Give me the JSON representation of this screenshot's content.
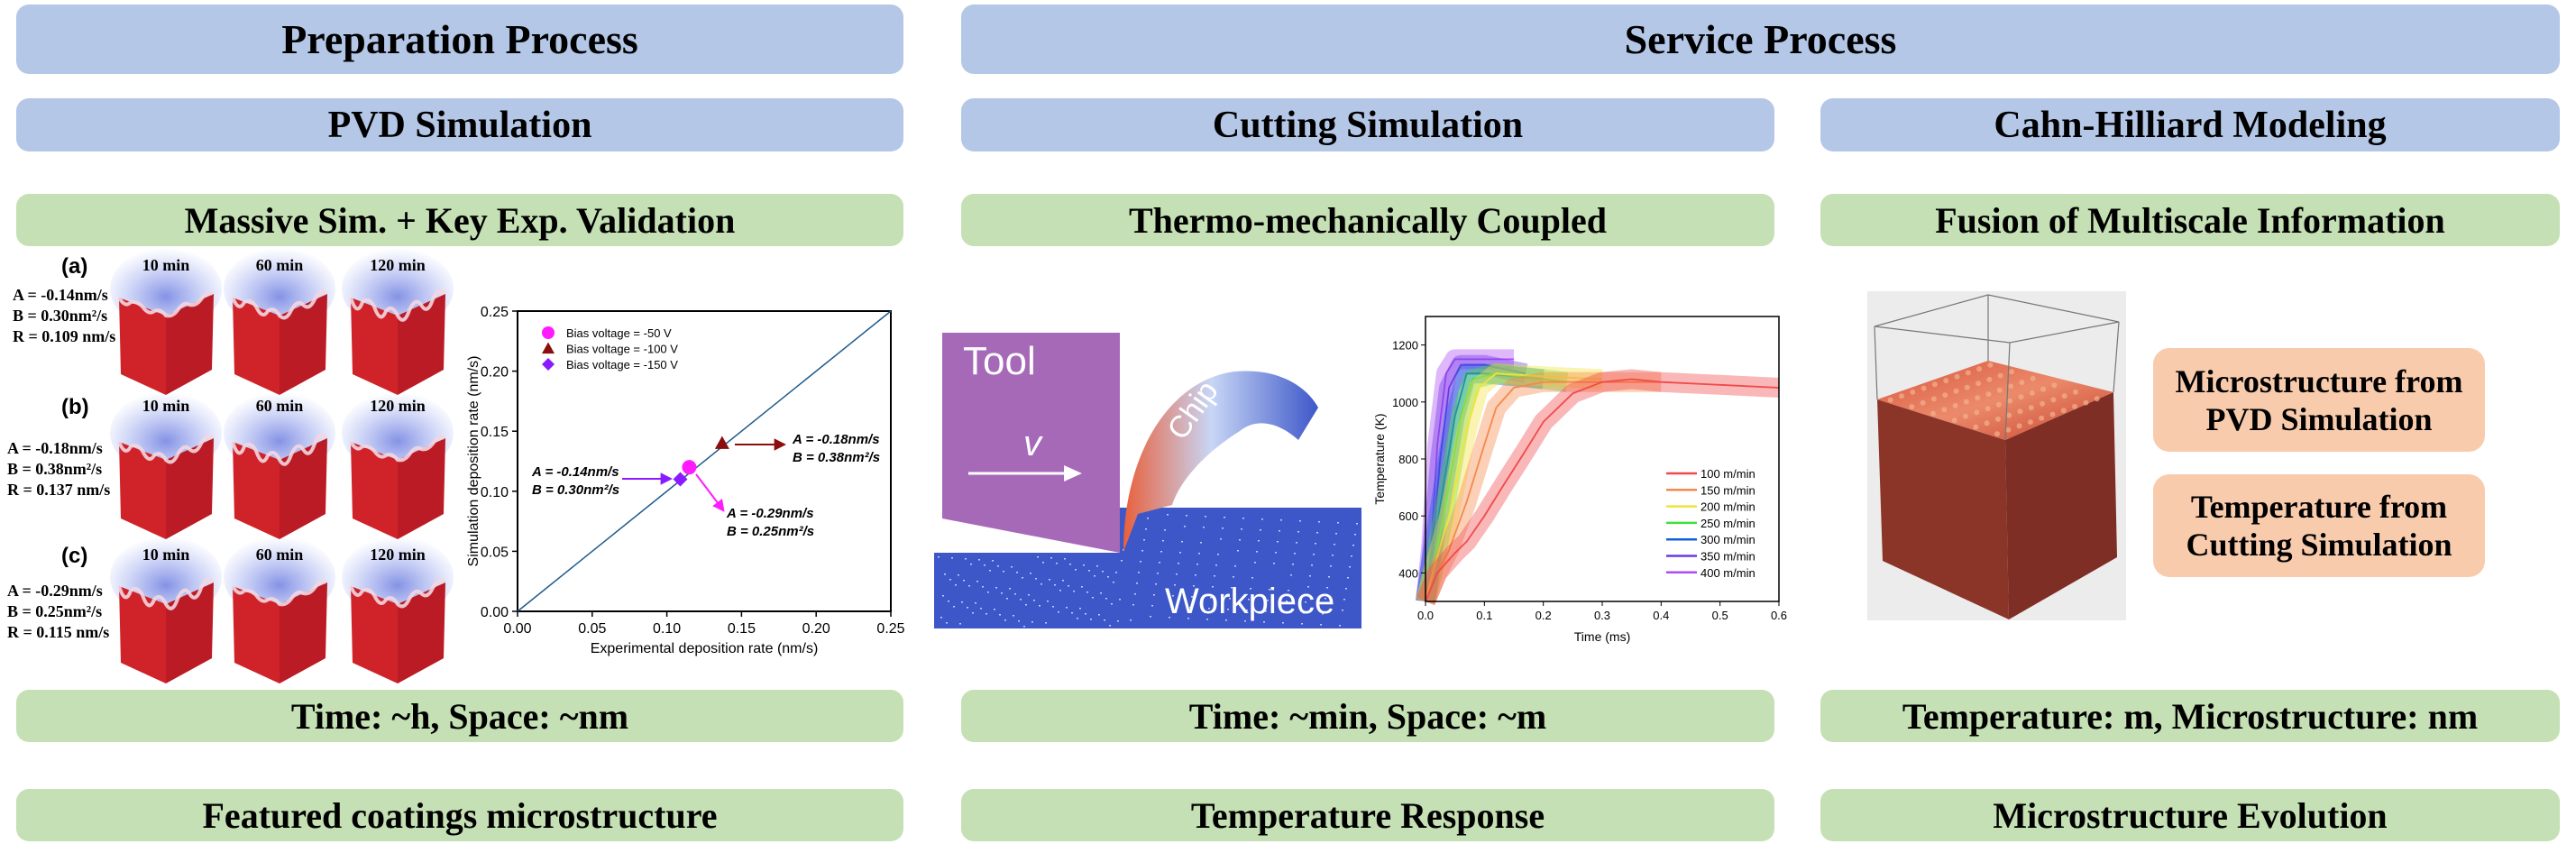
{
  "headers": {
    "preparation": "Preparation Process",
    "service": "Service Process"
  },
  "subheaders": {
    "pvd": "PVD Simulation",
    "cutting": "Cutting Simulation",
    "cahn": "Cahn-Hilliard Modeling"
  },
  "features": {
    "pvd": "Massive Sim. + Key Exp. Validation",
    "cutting": "Thermo-mechanically Coupled",
    "cahn": "Fusion of Multiscale Information"
  },
  "scales": {
    "pvd": "Time: ~h, Space: ~nm",
    "cutting": "Time: ~min, Space: ~m",
    "cahn": "Temperature: m, Microstructure: nm"
  },
  "outcomes": {
    "pvd": "Featured coatings microstructure",
    "cutting": "Temperature Response",
    "cahn": "Microstructure Evolution"
  },
  "morphology": {
    "times": [
      "10 min",
      "60 min",
      "120 min"
    ],
    "rows": [
      {
        "label": "(a)",
        "A": "A = -0.14nm/s",
        "B": "B = 0.30nm²/s",
        "R": "R  = 0.109 nm/s"
      },
      {
        "label": "(b)",
        "A": "A = -0.18nm/s",
        "B": "B = 0.38nm²/s",
        "R": "R  = 0.137 nm/s"
      },
      {
        "label": "(c)",
        "A": "A = -0.29nm/s",
        "B": "B = 0.25nm²/s",
        "R": "R  = 0.115 nm/s"
      }
    ]
  },
  "cutting_image": {
    "tool": "Tool",
    "velocity": "v",
    "chip": "Chip",
    "workpiece": "Workpiece",
    "colors": {
      "tool": "#a569b8",
      "workpiece": "#3d57c9",
      "hot": "#e8603c"
    }
  },
  "cahn_panel": {
    "info_1": "Microstructure from PVD Simulation",
    "info_2": "Temperature from Cutting Simulation",
    "colors": {
      "cube": "#8b3428",
      "top": "#d8553f"
    }
  },
  "chart_data": [
    {
      "type": "scatter",
      "xlabel": "Experimental deposition rate (nm/s)",
      "ylabel": "Simulation deposition rate (nm/s)",
      "xlim": [
        0,
        0.25
      ],
      "ylim": [
        0,
        0.25
      ],
      "xticks": [
        "0.00",
        "0.05",
        "0.10",
        "0.15",
        "0.20",
        "0.25"
      ],
      "yticks": [
        "0.00",
        "0.05",
        "0.10",
        "0.15",
        "0.20",
        "0.25"
      ],
      "reference_line": {
        "from": [
          0,
          0
        ],
        "to": [
          0.25,
          0.25
        ],
        "color": "#1f5a8c"
      },
      "legend_position": "top-left",
      "series": [
        {
          "name": "Bias voltage = -50 V",
          "marker": "circle",
          "color": "#ff1aff",
          "x": 0.115,
          "y": 0.12,
          "annotation": [
            "A = -0.29nm/s",
            "B = 0.25nm²/s"
          ]
        },
        {
          "name": "Bias voltage = -100 V",
          "marker": "triangle",
          "color": "#8b0d0d",
          "x": 0.137,
          "y": 0.14,
          "annotation": [
            "A = -0.18nm/s",
            "B = 0.38nm²/s"
          ]
        },
        {
          "name": "Bias voltage = -150 V",
          "marker": "diamond",
          "color": "#8a1aff",
          "x": 0.109,
          "y": 0.11,
          "annotation": [
            "A = -0.14nm/s",
            "B = 0.30nm²/s"
          ]
        }
      ]
    },
    {
      "type": "line",
      "xlabel": "Time (ms)",
      "ylabel": "Temperature (K)",
      "xlim": [
        0,
        0.6
      ],
      "ylim": [
        300,
        1300
      ],
      "xticks": [
        "0.0",
        "0.1",
        "0.2",
        "0.3",
        "0.4",
        "0.5",
        "0.6"
      ],
      "yticks": [
        "400",
        "600",
        "800",
        "1000",
        "1200"
      ],
      "legend_position": "bottom-right",
      "series": [
        {
          "name": "100 m/min",
          "color": "#f04a4a",
          "points": [
            [
              0,
              300
            ],
            [
              0.02,
              400
            ],
            [
              0.05,
              470
            ],
            [
              0.07,
              510
            ],
            [
              0.1,
              600
            ],
            [
              0.13,
              700
            ],
            [
              0.17,
              830
            ],
            [
              0.2,
              930
            ],
            [
              0.25,
              1030
            ],
            [
              0.3,
              1070
            ],
            [
              0.35,
              1080
            ],
            [
              0.4,
              1070
            ],
            [
              0.5,
              1060
            ],
            [
              0.6,
              1050
            ]
          ]
        },
        {
          "name": "150 m/min",
          "color": "#f5894a",
          "points": [
            [
              0,
              300
            ],
            [
              0.02,
              400
            ],
            [
              0.04,
              480
            ],
            [
              0.07,
              650
            ],
            [
              0.1,
              850
            ],
            [
              0.12,
              980
            ],
            [
              0.15,
              1050
            ],
            [
              0.2,
              1070
            ],
            [
              0.3,
              1070
            ],
            [
              0.4,
              1070
            ]
          ]
        },
        {
          "name": "200 m/min",
          "color": "#f2e23c",
          "points": [
            [
              0,
              300
            ],
            [
              0.015,
              420
            ],
            [
              0.04,
              600
            ],
            [
              0.07,
              900
            ],
            [
              0.09,
              1050
            ],
            [
              0.12,
              1100
            ],
            [
              0.2,
              1090
            ],
            [
              0.3,
              1080
            ]
          ]
        },
        {
          "name": "250 m/min",
          "color": "#3ee03e",
          "points": [
            [
              0,
              300
            ],
            [
              0.015,
              430
            ],
            [
              0.035,
              650
            ],
            [
              0.06,
              950
            ],
            [
              0.08,
              1080
            ],
            [
              0.12,
              1100
            ],
            [
              0.2,
              1080
            ],
            [
              0.24,
              1070
            ]
          ]
        },
        {
          "name": "300 m/min",
          "color": "#1060e0",
          "points": [
            [
              0,
              300
            ],
            [
              0.01,
              440
            ],
            [
              0.03,
              700
            ],
            [
              0.05,
              950
            ],
            [
              0.07,
              1100
            ],
            [
              0.1,
              1100
            ],
            [
              0.15,
              1090
            ],
            [
              0.2,
              1080
            ]
          ]
        },
        {
          "name": "350 m/min",
          "color": "#6a3ae6",
          "points": [
            [
              0,
              300
            ],
            [
              0.01,
              450
            ],
            [
              0.025,
              800
            ],
            [
              0.04,
              1050
            ],
            [
              0.06,
              1130
            ],
            [
              0.1,
              1130
            ],
            [
              0.17,
              1100
            ]
          ]
        },
        {
          "name": "400 m/min",
          "color": "#b04af5",
          "points": [
            [
              0,
              300
            ],
            [
              0.01,
              500
            ],
            [
              0.02,
              850
            ],
            [
              0.035,
              1100
            ],
            [
              0.05,
              1150
            ],
            [
              0.1,
              1150
            ],
            [
              0.15,
              1150
            ]
          ]
        }
      ]
    }
  ]
}
